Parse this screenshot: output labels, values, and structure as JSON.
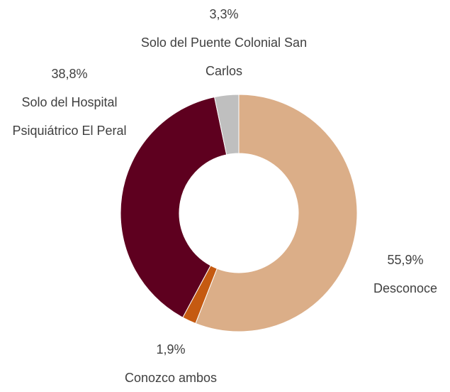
{
  "chart_data": {
    "type": "donut",
    "categories": [
      "Desconoce",
      "Conozco ambos",
      "Solo del Hospital Psiquiátrico El Peral",
      "Solo del Puente Colonial San Carlos"
    ],
    "values": [
      55.9,
      1.9,
      38.8,
      3.3
    ],
    "value_labels": [
      "55,9%",
      "1,9%",
      "38,8%",
      "3,3%"
    ],
    "colors": [
      "#dbae88",
      "#c55a11",
      "#5e001f",
      "#bfbfbf"
    ]
  }
}
